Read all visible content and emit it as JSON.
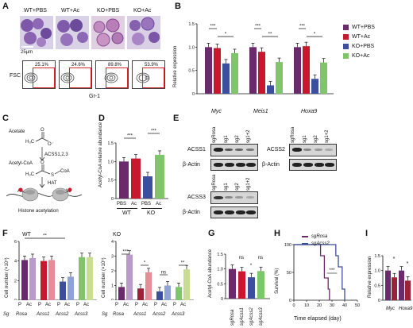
{
  "colors": {
    "wt_pbs": "#6b2a6c",
    "wt_ac": "#c8182e",
    "ko_pbs": "#3b4f9e",
    "ko_ac": "#7fc56a",
    "light_purple": "#b99acb",
    "pink": "#e98a98",
    "light_blue": "#8fa2d6",
    "light_green": "#c8dd8f",
    "dark_red": "#9b2335"
  },
  "panelA": {
    "label": "A",
    "groups": [
      "WT+PBS",
      "WT+Ac",
      "KO+PBS",
      "KO+Ac"
    ],
    "scale": "25µm",
    "ylabel": "FSC",
    "xlabel": "Gr-1",
    "percents": [
      "25.1%",
      "24.6%",
      "89.8%",
      "53.9%"
    ]
  },
  "panelB": {
    "label": "B",
    "ylabel": "Relative expression",
    "genes": [
      "Myc",
      "Meis1",
      "Hoxa9"
    ],
    "legend": [
      "WT+PBS",
      "WT+Ac",
      "KO+PBS",
      "KO+Ac"
    ],
    "yticks": [
      "0",
      "0.5",
      "1.0",
      "1.5"
    ],
    "sig": [
      "***",
      "*",
      "***",
      "**",
      "***",
      "*"
    ]
  },
  "panelC": {
    "label": "C",
    "acetate": "Acetate",
    "enzyme": "ACSS1,2,3",
    "acetylcoa": "Acetyl-CoA",
    "coa": "CoA",
    "hat": "HAT",
    "ac": "Ac",
    "caption": "Histone acetylation"
  },
  "panelD": {
    "label": "D",
    "ylabel": "Acetyl-CoA relative abundance",
    "xlabels": [
      "PBS",
      "Ac",
      "PBS",
      "Ac"
    ],
    "groups": [
      "WT",
      "KO"
    ],
    "yticks": [
      "0",
      "0.5",
      "1.0",
      "1.5"
    ],
    "sig": [
      "***",
      "***"
    ]
  },
  "panelE": {
    "label": "E",
    "lanes": [
      "sgRosa",
      "sg1",
      "sg2",
      "sg1+2"
    ],
    "proteins": [
      "ACSS1",
      "ACSS2",
      "ACSS3"
    ],
    "actin": "β-Actin"
  },
  "panelF": {
    "label": "F",
    "wt": "WT",
    "ko": "KO",
    "ylabel": "Cell number (×10⁵)",
    "ylabel_ko": "Cell number (×10⁵)",
    "yticks": [
      "0",
      "2",
      "4",
      "6"
    ],
    "yticks_ko": [
      "0",
      "1",
      "2",
      "3",
      "4"
    ],
    "pa": [
      "P",
      "Ac"
    ],
    "sg": "Sg",
    "genes": [
      "Rosa",
      "Acss1",
      "Acss2",
      "Acss3"
    ],
    "sig_wt": "**",
    "sig_ko": [
      "***",
      "*",
      "ns",
      "**"
    ]
  },
  "panelG": {
    "label": "G",
    "ylabel": "Acetyl-CoA abundance",
    "yticks": [
      "0",
      "0.5",
      "1.0",
      "1.5"
    ],
    "xlabels": [
      "sgRosa",
      "sgAcss1",
      "sgAcss2",
      "sgAcss3"
    ],
    "sig": [
      "ns",
      "*",
      "ns"
    ]
  },
  "panelH": {
    "label": "H",
    "ylabel": "Survival (%)",
    "xlabel": "Time elapsed (day)",
    "legend": [
      "sgRosa",
      "sgAcss2"
    ],
    "yticks": [
      "0",
      "50",
      "100"
    ],
    "xticks": [
      "0",
      "10",
      "20",
      "30",
      "40",
      "50"
    ],
    "sig": "***"
  },
  "panelI": {
    "label": "I",
    "ylabel": "Relative expression",
    "genes": [
      "Myc",
      "Hoxa9"
    ],
    "yticks": [
      "0",
      "0.5",
      "1.0",
      "1.5"
    ],
    "sig": [
      "*",
      "*"
    ]
  },
  "chart_data": [
    {
      "type": "bar",
      "panel": "B",
      "ylabel": "Relative expression",
      "categories": [
        "Myc",
        "Meis1",
        "Hoxa9"
      ],
      "ylim": [
        0,
        1.5
      ],
      "series": [
        {
          "name": "WT+PBS",
          "values": [
            1.0,
            1.0,
            1.0
          ]
        },
        {
          "name": "WT+Ac",
          "values": [
            0.98,
            0.9,
            1.02
          ]
        },
        {
          "name": "KO+PBS",
          "values": [
            0.65,
            0.18,
            0.32
          ]
        },
        {
          "name": "KO+Ac",
          "values": [
            0.87,
            0.68,
            0.67
          ]
        }
      ]
    },
    {
      "type": "bar",
      "panel": "D",
      "ylabel": "Acetyl-CoA relative abundance",
      "categories": [
        "PBS",
        "Ac",
        "PBS",
        "Ac"
      ],
      "values": [
        1.0,
        1.08,
        0.6,
        1.18
      ],
      "ylim": [
        0,
        1.5
      ]
    },
    {
      "type": "bar",
      "panel": "F-WT",
      "ylabel": "Cell number (×10⁵)",
      "categories": [
        "P",
        "Ac",
        "P",
        "Ac",
        "P",
        "Ac",
        "P",
        "Ac"
      ],
      "values": [
        4.1,
        4.3,
        4.0,
        4.1,
        1.9,
        2.4,
        4.4,
        4.4
      ],
      "ylim": [
        0,
        6
      ]
    },
    {
      "type": "bar",
      "panel": "F-KO",
      "ylabel": "Cell number (×10⁵)",
      "categories": [
        "P",
        "Ac",
        "P",
        "Ac",
        "P",
        "Ac",
        "P",
        "Ac"
      ],
      "values": [
        0.9,
        3.1,
        0.8,
        1.9,
        0.6,
        1.0,
        0.9,
        2.1
      ],
      "ylim": [
        0,
        4
      ]
    },
    {
      "type": "bar",
      "panel": "G",
      "ylabel": "Acetyl-CoA abundance",
      "categories": [
        "sgRosa",
        "sgAcss1",
        "sgAcss2",
        "sgAcss3"
      ],
      "values": [
        1.0,
        0.92,
        0.72,
        0.93
      ],
      "ylim": [
        0,
        1.5
      ]
    },
    {
      "type": "line",
      "panel": "H",
      "ylabel": "Survival (%)",
      "xlabel": "Time elapsed (day)",
      "series": [
        {
          "name": "sgRosa",
          "x": [
            0,
            18,
            21,
            24,
            27,
            28
          ],
          "y": [
            100,
            100,
            80,
            40,
            20,
            0
          ]
        },
        {
          "name": "sgAcss2",
          "x": [
            0,
            30,
            33,
            35,
            38,
            40
          ],
          "y": [
            100,
            100,
            80,
            60,
            20,
            0
          ]
        }
      ],
      "xlim": [
        0,
        50
      ],
      "ylim": [
        0,
        100
      ]
    },
    {
      "type": "bar",
      "panel": "I",
      "ylabel": "Relative expression",
      "categories": [
        "Myc",
        "Hoxa9"
      ],
      "series": [
        {
          "name": "sgRosa",
          "values": [
            1.0,
            1.0
          ]
        },
        {
          "name": "sgAcss2",
          "values": [
            0.77,
            0.66
          ]
        }
      ],
      "ylim": [
        0,
        1.5
      ]
    }
  ]
}
